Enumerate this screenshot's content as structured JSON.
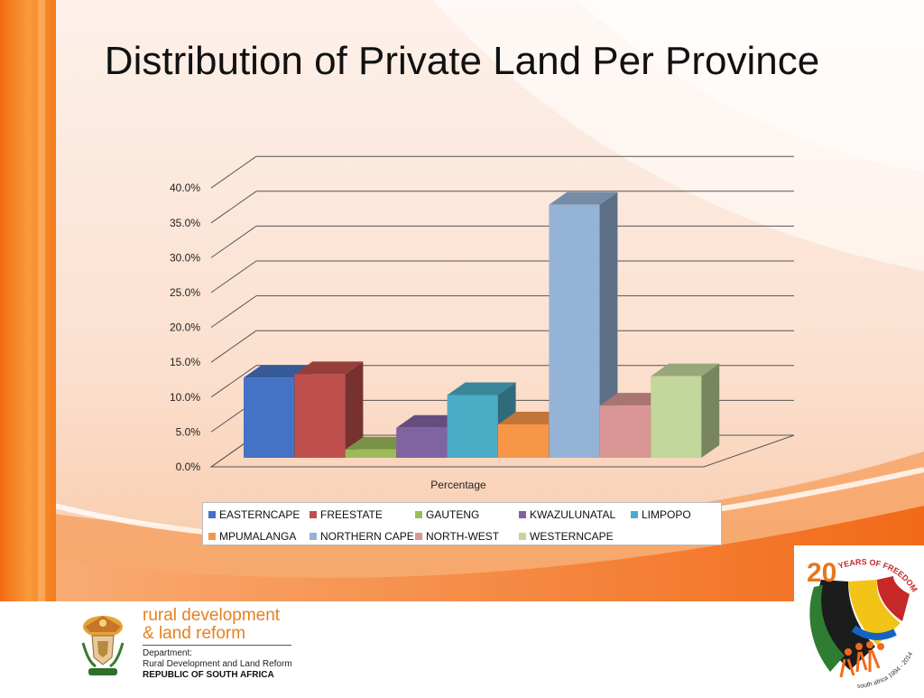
{
  "slide": {
    "title": "Distribution of Private Land Per Province"
  },
  "chart_data": {
    "type": "bar",
    "title": "",
    "xlabel": "Percentage",
    "ylabel": "",
    "ylim": [
      0,
      40
    ],
    "yticks": [
      "0.0%",
      "5.0%",
      "10.0%",
      "15.0%",
      "20.0%",
      "25.0%",
      "30.0%",
      "35.0%",
      "40.0%"
    ],
    "grid": true,
    "legend_position": "bottom",
    "series": [
      {
        "name": "EASTERNCAPE",
        "values": [
          11.5
        ],
        "color": "#4472c4"
      },
      {
        "name": "FREESTATE",
        "values": [
          12.0
        ],
        "color": "#c0504d"
      },
      {
        "name": "GAUTENG",
        "values": [
          1.2
        ],
        "color": "#9bbb59"
      },
      {
        "name": "KWAZULUNATAL",
        "values": [
          4.3
        ],
        "color": "#8064a2"
      },
      {
        "name": "LIMPOPO",
        "values": [
          9.0
        ],
        "color": "#4bacc6"
      },
      {
        "name": "MPUMALANGA",
        "values": [
          4.8
        ],
        "color": "#f79646"
      },
      {
        "name": "NORTHERN CAPE",
        "values": [
          36.3
        ],
        "color": "#95b3d7"
      },
      {
        "name": "NORTH-WEST",
        "values": [
          7.5
        ],
        "color": "#d99694"
      },
      {
        "name": "WESTERNCAPE",
        "values": [
          11.7
        ],
        "color": "#c3d69b"
      }
    ]
  },
  "footer": {
    "rd_line1": "rural development",
    "rd_line2": "& land reform",
    "dept_label": "Department:",
    "dept_name": "Rural Development and Land Reform",
    "country": "REPUBLIC OF SOUTH AFRICA"
  },
  "badge": {
    "number": "20",
    "text": "YEARS OF FREEDOM",
    "subtext": "south africa 1994 - 2014"
  },
  "colors": {
    "orange_accent": "#f07a1a",
    "dark_orange": "#e05a0a"
  }
}
